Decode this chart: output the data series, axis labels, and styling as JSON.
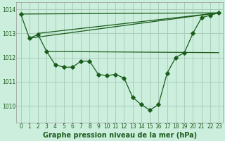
{
  "title": "Graphe pression niveau de la mer (hPa)",
  "background_color": "#cceedd",
  "grid_color": "#aaccbb",
  "line_color": "#1a5c1a",
  "xlim": [
    -0.5,
    23.5
  ],
  "ylim": [
    1009.3,
    1014.3
  ],
  "yticks": [
    1010,
    1011,
    1012,
    1013,
    1014
  ],
  "xticks": [
    0,
    1,
    2,
    3,
    4,
    5,
    6,
    7,
    8,
    9,
    10,
    11,
    12,
    13,
    14,
    15,
    16,
    17,
    18,
    19,
    20,
    21,
    22,
    23
  ],
  "main_x": [
    0,
    1,
    2,
    3,
    4,
    5,
    6,
    7,
    8,
    9,
    10,
    11,
    12,
    13,
    14,
    15,
    16,
    17,
    18,
    19,
    20,
    21,
    22,
    23
  ],
  "main_y": [
    1013.8,
    1012.8,
    1012.95,
    1012.25,
    1011.7,
    1011.6,
    1011.6,
    1011.85,
    1011.85,
    1011.3,
    1011.25,
    1011.3,
    1011.15,
    1010.35,
    1010.05,
    1009.82,
    1010.05,
    1011.35,
    1012.0,
    1012.2,
    1013.0,
    1013.65,
    1013.75,
    1013.85
  ],
  "line2_x": [
    0,
    23
  ],
  "line2_y": [
    1013.8,
    1013.85
  ],
  "line3_x": [
    1,
    23
  ],
  "line3_y": [
    1012.8,
    1013.85
  ],
  "line4_x": [
    2,
    23
  ],
  "line4_y": [
    1013.0,
    1013.85
  ],
  "line5_x": [
    3,
    23
  ],
  "line5_y": [
    1012.25,
    1012.2
  ],
  "marker_size": 2.8,
  "linewidth": 0.9,
  "title_fontsize": 7.0,
  "tick_fontsize": 5.5
}
